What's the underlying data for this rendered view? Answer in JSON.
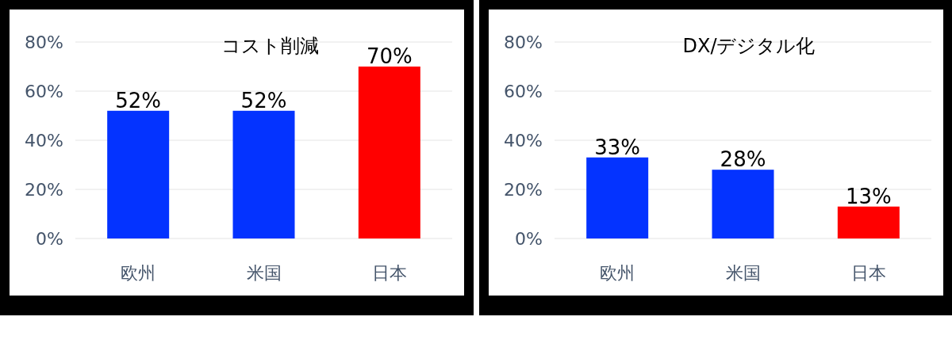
{
  "chart_data": [
    {
      "type": "bar",
      "title": "コスト削減",
      "categories": [
        "欧州",
        "米国",
        "日本"
      ],
      "values": [
        52,
        52,
        70
      ],
      "colors": [
        "#0433ff",
        "#0433ff",
        "#ff0000"
      ],
      "value_labels": [
        "52%",
        "52%",
        "70%"
      ],
      "ylim": [
        0,
        80
      ],
      "yticks": [
        {
          "value": 0,
          "label": "0%"
        },
        {
          "value": 20,
          "label": "20%"
        },
        {
          "value": 40,
          "label": "40%"
        },
        {
          "value": 60,
          "label": "60%"
        },
        {
          "value": 80,
          "label": "80%"
        }
      ],
      "grid": "y"
    },
    {
      "type": "bar",
      "title": "DX/デジタル化",
      "categories": [
        "欧州",
        "米国",
        "日本"
      ],
      "values": [
        33,
        28,
        13
      ],
      "colors": [
        "#0433ff",
        "#0433ff",
        "#ff0000"
      ],
      "value_labels": [
        "33%",
        "28%",
        "13%"
      ],
      "ylim": [
        0,
        80
      ],
      "yticks": [
        {
          "value": 0,
          "label": "0%"
        },
        {
          "value": 20,
          "label": "20%"
        },
        {
          "value": 40,
          "label": "40%"
        },
        {
          "value": 60,
          "label": "60%"
        },
        {
          "value": 80,
          "label": "80%"
        }
      ],
      "grid": "y"
    }
  ]
}
